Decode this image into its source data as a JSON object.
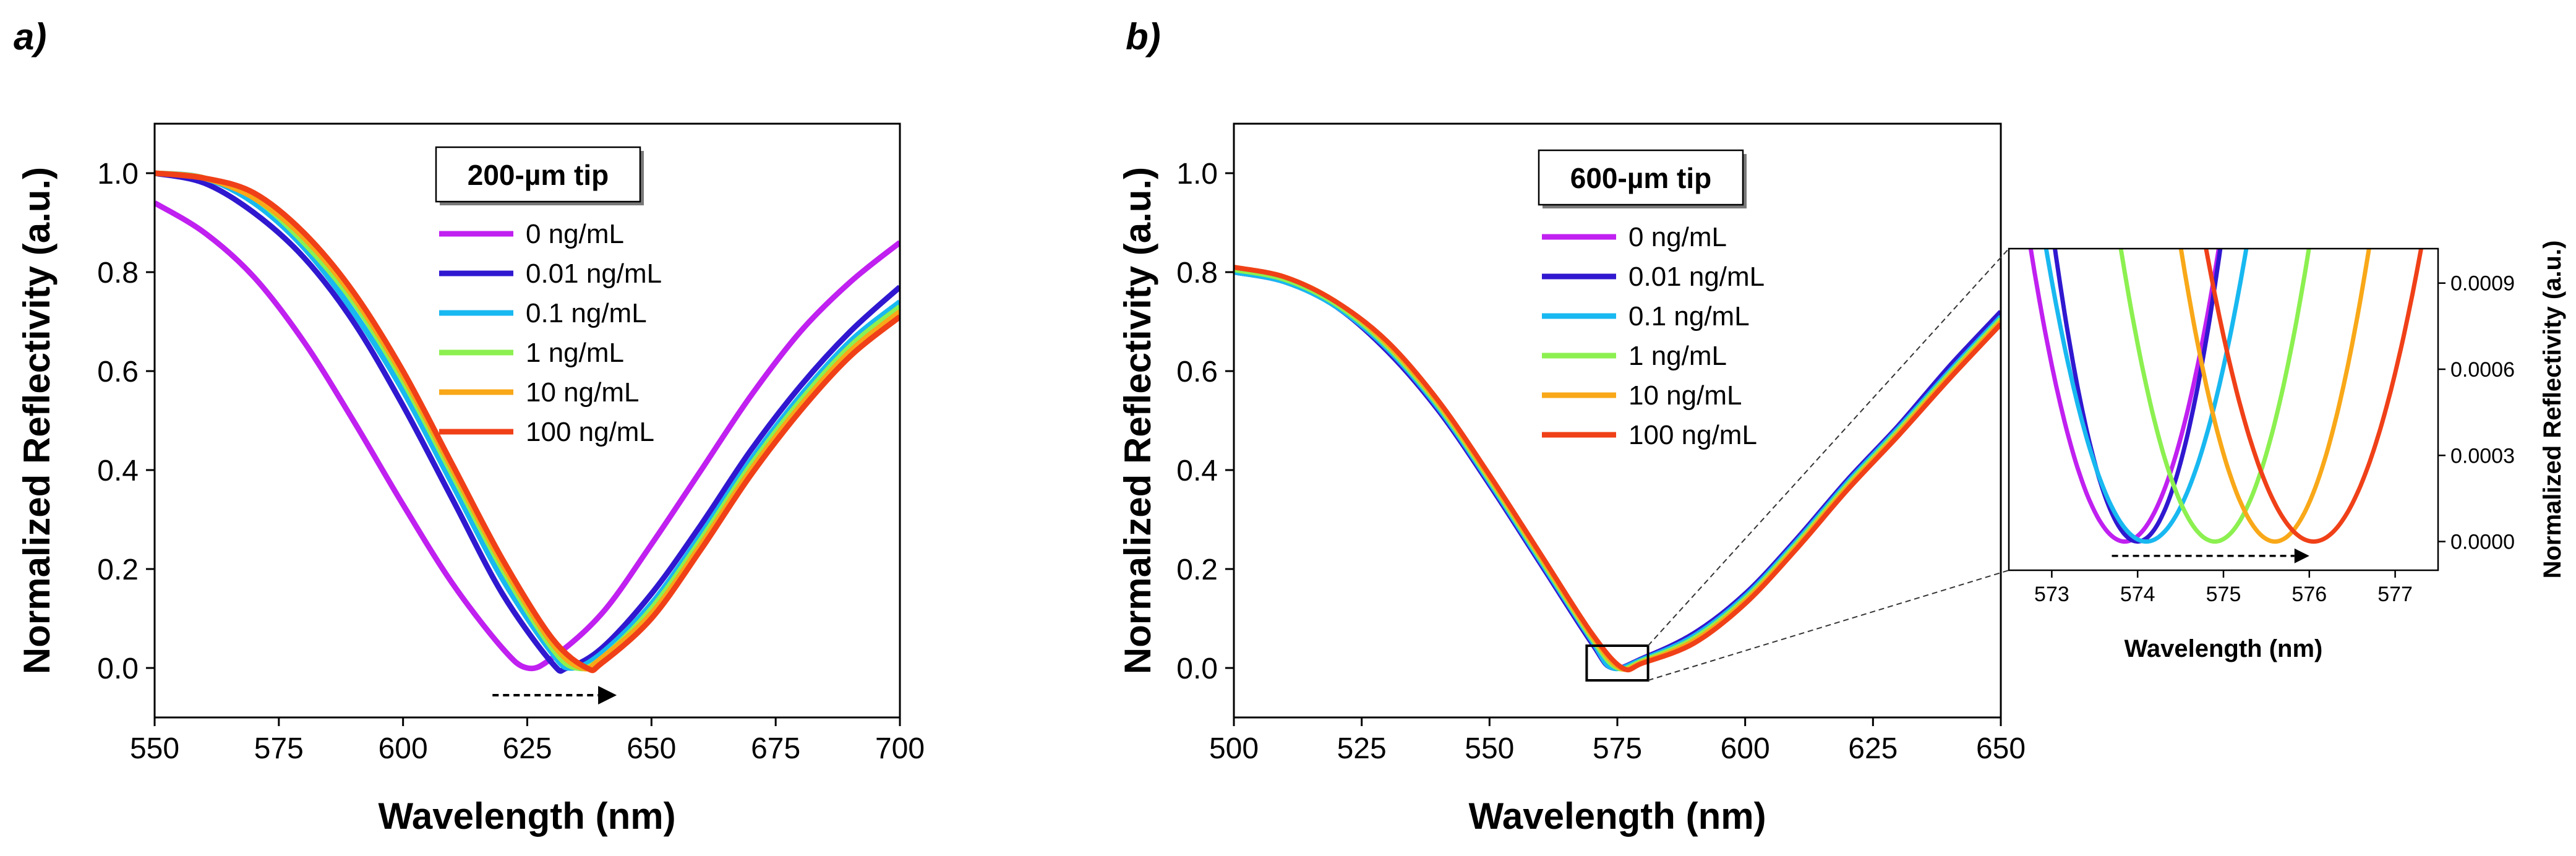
{
  "chart_data": [
    {
      "id": "a",
      "type": "line",
      "panel_label": "a)",
      "title": "",
      "xlabel": "Wavelength (nm)",
      "ylabel": "Normalized Reflectivity (a.u.)",
      "xlim": [
        550,
        700
      ],
      "ylim": [
        -0.1,
        1.1
      ],
      "xticks": [
        550,
        575,
        600,
        625,
        650,
        675,
        700
      ],
      "yticks": [
        0.0,
        0.2,
        0.4,
        0.6,
        0.8,
        1.0
      ],
      "xtick_labels": [
        "550",
        "575",
        "600",
        "625",
        "650",
        "675",
        "700"
      ],
      "ytick_labels": [
        "0.0",
        "0.2",
        "0.4",
        "0.6",
        "0.8",
        "1.0"
      ],
      "legend_title": "200-µm tip",
      "legend_position": "top-center",
      "grid": false,
      "arrow": {
        "from": 618,
        "to": 643,
        "y": -0.055,
        "style": "dashed"
      },
      "series": [
        {
          "name": "0 ng/mL",
          "color": "#c020f0",
          "x": [
            550,
            560,
            570,
            580,
            590,
            600,
            610,
            620,
            625,
            630,
            640,
            650,
            660,
            670,
            680,
            690,
            700
          ],
          "y": [
            0.94,
            0.88,
            0.79,
            0.66,
            0.5,
            0.33,
            0.17,
            0.04,
            0.0,
            0.02,
            0.11,
            0.25,
            0.4,
            0.55,
            0.68,
            0.78,
            0.86
          ]
        },
        {
          "name": "0.01 ng/mL",
          "color": "#3018d0",
          "x": [
            550,
            560,
            570,
            580,
            590,
            600,
            610,
            620,
            630,
            633,
            640,
            650,
            660,
            670,
            680,
            690,
            700
          ],
          "y": [
            1.0,
            0.98,
            0.92,
            0.83,
            0.7,
            0.53,
            0.34,
            0.15,
            0.01,
            0.0,
            0.04,
            0.15,
            0.29,
            0.44,
            0.57,
            0.68,
            0.77
          ]
        },
        {
          "name": "0.1 ng/mL",
          "color": "#18b8f0",
          "x": [
            550,
            560,
            570,
            580,
            590,
            600,
            610,
            620,
            630,
            634,
            640,
            650,
            660,
            670,
            680,
            690,
            700
          ],
          "y": [
            1.0,
            0.99,
            0.94,
            0.85,
            0.72,
            0.56,
            0.37,
            0.18,
            0.03,
            0.0,
            0.03,
            0.13,
            0.27,
            0.42,
            0.55,
            0.66,
            0.74
          ]
        },
        {
          "name": "1 ng/mL",
          "color": "#8cf050",
          "x": [
            550,
            560,
            570,
            580,
            590,
            600,
            610,
            620,
            630,
            635,
            640,
            650,
            660,
            670,
            680,
            690,
            700
          ],
          "y": [
            1.0,
            0.99,
            0.95,
            0.86,
            0.74,
            0.58,
            0.39,
            0.2,
            0.04,
            0.0,
            0.02,
            0.12,
            0.26,
            0.41,
            0.54,
            0.65,
            0.73
          ]
        },
        {
          "name": "10 ng/mL",
          "color": "#f8a818",
          "x": [
            550,
            560,
            570,
            580,
            590,
            600,
            610,
            620,
            630,
            636,
            640,
            650,
            660,
            670,
            680,
            690,
            700
          ],
          "y": [
            1.0,
            0.99,
            0.95,
            0.87,
            0.75,
            0.59,
            0.4,
            0.21,
            0.05,
            0.0,
            0.02,
            0.11,
            0.25,
            0.4,
            0.53,
            0.64,
            0.72
          ]
        },
        {
          "name": "100 ng/mL",
          "color": "#f04018",
          "x": [
            550,
            560,
            570,
            580,
            590,
            600,
            610,
            620,
            630,
            637,
            640,
            650,
            660,
            670,
            680,
            690,
            700
          ],
          "y": [
            1.0,
            0.99,
            0.96,
            0.88,
            0.76,
            0.6,
            0.41,
            0.22,
            0.06,
            0.0,
            0.01,
            0.1,
            0.24,
            0.39,
            0.52,
            0.63,
            0.71
          ]
        }
      ]
    },
    {
      "id": "b",
      "type": "line",
      "panel_label": "b)",
      "title": "",
      "xlabel": "Wavelength (nm)",
      "ylabel": "Normalized Reflectivity (a.u.)",
      "xlim": [
        500,
        650
      ],
      "ylim": [
        -0.1,
        1.1
      ],
      "xticks": [
        500,
        525,
        550,
        575,
        600,
        625,
        650
      ],
      "yticks": [
        0.0,
        0.2,
        0.4,
        0.6,
        0.8,
        1.0
      ],
      "xtick_labels": [
        "500",
        "525",
        "550",
        "575",
        "600",
        "625",
        "650"
      ],
      "ytick_labels": [
        "0.0",
        "0.2",
        "0.4",
        "0.6",
        "0.8",
        "1.0"
      ],
      "legend_title": "600-µm tip",
      "legend_position": "top-center",
      "grid": false,
      "zoom_box": {
        "x": [
          569,
          581
        ],
        "y": [
          -0.025,
          0.045
        ]
      },
      "series": [
        {
          "name": "0 ng/mL",
          "color": "#c020f0",
          "x": [
            500,
            510,
            520,
            530,
            540,
            550,
            560,
            570,
            574,
            580,
            590,
            600,
            610,
            620,
            630,
            640,
            650
          ],
          "y": [
            0.8,
            0.78,
            0.73,
            0.64,
            0.52,
            0.37,
            0.21,
            0.05,
            0.0,
            0.02,
            0.07,
            0.15,
            0.26,
            0.38,
            0.49,
            0.61,
            0.72
          ]
        },
        {
          "name": "0.01 ng/mL",
          "color": "#3018d0",
          "x": [
            500,
            510,
            520,
            530,
            540,
            550,
            560,
            570,
            574,
            580,
            590,
            600,
            610,
            620,
            630,
            640,
            650
          ],
          "y": [
            0.8,
            0.78,
            0.73,
            0.64,
            0.52,
            0.37,
            0.21,
            0.05,
            0.0,
            0.02,
            0.07,
            0.15,
            0.26,
            0.38,
            0.49,
            0.61,
            0.72
          ]
        },
        {
          "name": "0.1 ng/mL",
          "color": "#18b8f0",
          "x": [
            500,
            510,
            520,
            530,
            540,
            550,
            560,
            570,
            574,
            580,
            590,
            600,
            610,
            620,
            630,
            640,
            650
          ],
          "y": [
            0.8,
            0.78,
            0.73,
            0.645,
            0.525,
            0.375,
            0.215,
            0.055,
            0.0,
            0.018,
            0.065,
            0.145,
            0.255,
            0.375,
            0.485,
            0.6,
            0.71
          ]
        },
        {
          "name": "1 ng/mL",
          "color": "#8cf050",
          "x": [
            500,
            510,
            520,
            530,
            540,
            550,
            560,
            570,
            575,
            580,
            590,
            600,
            610,
            620,
            630,
            640,
            650
          ],
          "y": [
            0.805,
            0.785,
            0.735,
            0.65,
            0.53,
            0.38,
            0.22,
            0.06,
            0.0,
            0.015,
            0.06,
            0.14,
            0.25,
            0.37,
            0.48,
            0.595,
            0.705
          ]
        },
        {
          "name": "10 ng/mL",
          "color": "#f8a818",
          "x": [
            500,
            510,
            520,
            530,
            540,
            550,
            560,
            570,
            575.5,
            580,
            590,
            600,
            610,
            620,
            630,
            640,
            650
          ],
          "y": [
            0.81,
            0.79,
            0.74,
            0.655,
            0.535,
            0.385,
            0.225,
            0.065,
            0.0,
            0.012,
            0.055,
            0.135,
            0.245,
            0.365,
            0.475,
            0.59,
            0.7
          ]
        },
        {
          "name": "100 ng/mL",
          "color": "#f04018",
          "x": [
            500,
            510,
            520,
            530,
            540,
            550,
            560,
            570,
            576,
            580,
            590,
            600,
            610,
            620,
            630,
            640,
            650
          ],
          "y": [
            0.81,
            0.79,
            0.74,
            0.66,
            0.54,
            0.39,
            0.23,
            0.07,
            0.0,
            0.01,
            0.05,
            0.13,
            0.24,
            0.36,
            0.47,
            0.585,
            0.695
          ]
        }
      ]
    },
    {
      "id": "inset",
      "type": "line",
      "title": "",
      "xlabel": "Wavelength (nm)",
      "ylabel": "Normalized Reflectivity (a.u.)",
      "xlim": [
        572.5,
        577.5
      ],
      "ylim": [
        -0.0001,
        0.00102
      ],
      "xticks": [
        573,
        574,
        575,
        576,
        577
      ],
      "yticks": [
        0.0,
        0.0003,
        0.0006,
        0.0009
      ],
      "xtick_labels": [
        "573",
        "574",
        "575",
        "576",
        "577"
      ],
      "ytick_labels": [
        "0.0000",
        "0.0003",
        "0.0006",
        "0.0009"
      ],
      "ytick_side": "right",
      "arrow": {
        "from": 573.7,
        "to": 576.0,
        "y": -5e-05,
        "style": "dashed"
      },
      "series": [
        {
          "name": "0 ng/mL",
          "color": "#c020f0",
          "min_x": 573.85,
          "curvature": 0.00085
        },
        {
          "name": "0.01 ng/mL",
          "color": "#3018d0",
          "min_x": 574.0,
          "curvature": 0.0011
        },
        {
          "name": "0.1 ng/mL",
          "color": "#18b8f0",
          "min_x": 574.1,
          "curvature": 0.00075
        },
        {
          "name": "1 ng/mL",
          "color": "#8cf050",
          "min_x": 574.9,
          "curvature": 0.00085
        },
        {
          "name": "10 ng/mL",
          "color": "#f8a818",
          "min_x": 575.6,
          "curvature": 0.00085
        },
        {
          "name": "100 ng/mL",
          "color": "#f04018",
          "min_x": 576.05,
          "curvature": 0.00065
        }
      ]
    }
  ]
}
